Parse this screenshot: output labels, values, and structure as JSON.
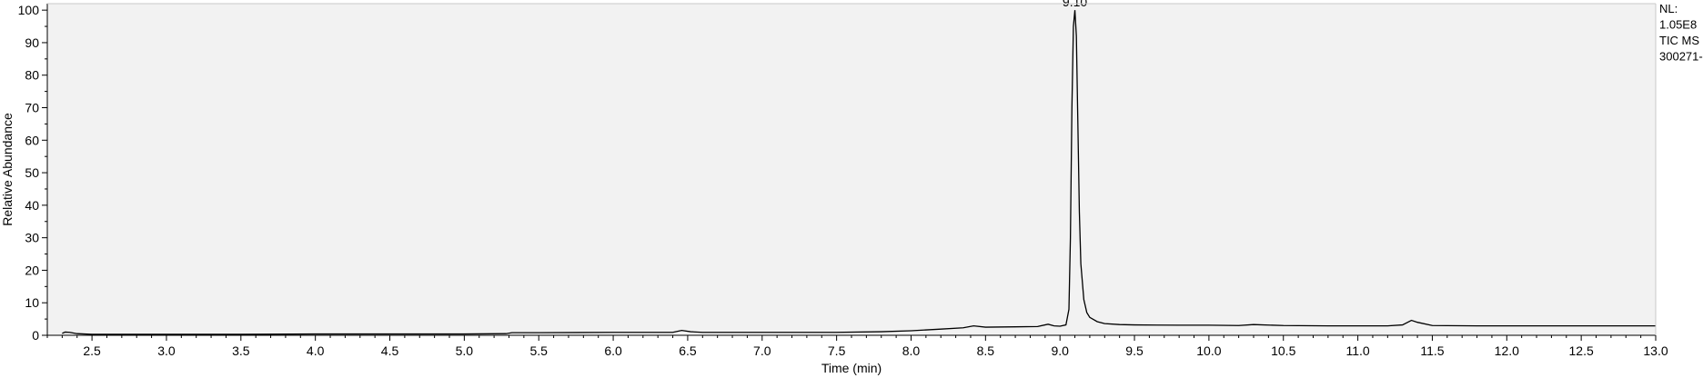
{
  "chart_data": {
    "type": "line",
    "title": "",
    "xlabel": "Time (min)",
    "ylabel": "Relative Abundance",
    "xlim": [
      2.2,
      13.0
    ],
    "ylim": [
      0,
      102
    ],
    "x_ticks": [
      2.5,
      3.0,
      3.5,
      4.0,
      4.5,
      5.0,
      5.5,
      6.0,
      6.5,
      7.0,
      7.5,
      8.0,
      8.5,
      9.0,
      9.5,
      10.0,
      10.5,
      11.0,
      11.5,
      12.0,
      12.5,
      13.0
    ],
    "x_tick_labels": [
      "2.5",
      "3.0",
      "3.5",
      "4.0",
      "4.5",
      "5.0",
      "5.5",
      "6.0",
      "6.5",
      "7.0",
      "7.5",
      "8.0",
      "8.5",
      "9.0",
      "9.5",
      "10.0",
      "10.5",
      "11.0",
      "11.5",
      "12.0",
      "12.5",
      "13.0"
    ],
    "y_ticks": [
      0,
      10,
      20,
      30,
      40,
      50,
      60,
      70,
      80,
      90,
      100
    ],
    "y_tick_labels": [
      "0",
      "10",
      "20",
      "30",
      "40",
      "50",
      "60",
      "70",
      "80",
      "90",
      "100"
    ],
    "peak_labels": [
      {
        "x": 9.1,
        "y": 100,
        "text": "9.10"
      }
    ],
    "side_annotations": [
      "NL:",
      "1.05E8",
      "TIC  MS",
      "300271-"
    ],
    "plot_background": "#f2f2f2",
    "line_color": "#000000",
    "grid": false,
    "series": [
      {
        "x": [
          2.3,
          2.32,
          2.35,
          2.4,
          2.45,
          2.5,
          3.0,
          3.5,
          4.0,
          4.5,
          5.0,
          5.28,
          5.32,
          5.5,
          6.0,
          6.4,
          6.46,
          6.52,
          6.6,
          7.0,
          7.5,
          7.8,
          8.0,
          8.2,
          8.35,
          8.42,
          8.5,
          8.7,
          8.85,
          8.92,
          8.96,
          9.0,
          9.04,
          9.06,
          9.07,
          9.08,
          9.09,
          9.1,
          9.11,
          9.12,
          9.13,
          9.14,
          9.16,
          9.18,
          9.2,
          9.25,
          9.3,
          9.4,
          9.5,
          9.8,
          10.0,
          10.2,
          10.3,
          10.5,
          10.8,
          11.0,
          11.2,
          11.3,
          11.36,
          11.4,
          11.5,
          11.8,
          12.0,
          12.5,
          13.0
        ],
        "y": [
          0.6,
          1.0,
          0.9,
          0.5,
          0.4,
          0.3,
          0.3,
          0.3,
          0.4,
          0.4,
          0.4,
          0.5,
          0.8,
          0.8,
          0.9,
          0.9,
          1.5,
          1.1,
          0.9,
          0.9,
          0.9,
          1.1,
          1.4,
          1.9,
          2.3,
          2.9,
          2.5,
          2.6,
          2.7,
          3.4,
          2.9,
          2.8,
          3.2,
          8.0,
          30.0,
          70.0,
          95.0,
          100.0,
          92.0,
          65.0,
          38.0,
          22.0,
          11.0,
          7.0,
          5.5,
          4.2,
          3.6,
          3.3,
          3.2,
          3.1,
          3.1,
          3.0,
          3.3,
          3.0,
          2.9,
          2.9,
          2.9,
          3.2,
          4.6,
          4.0,
          3.0,
          2.9,
          2.9,
          2.9,
          2.9
        ]
      }
    ]
  }
}
